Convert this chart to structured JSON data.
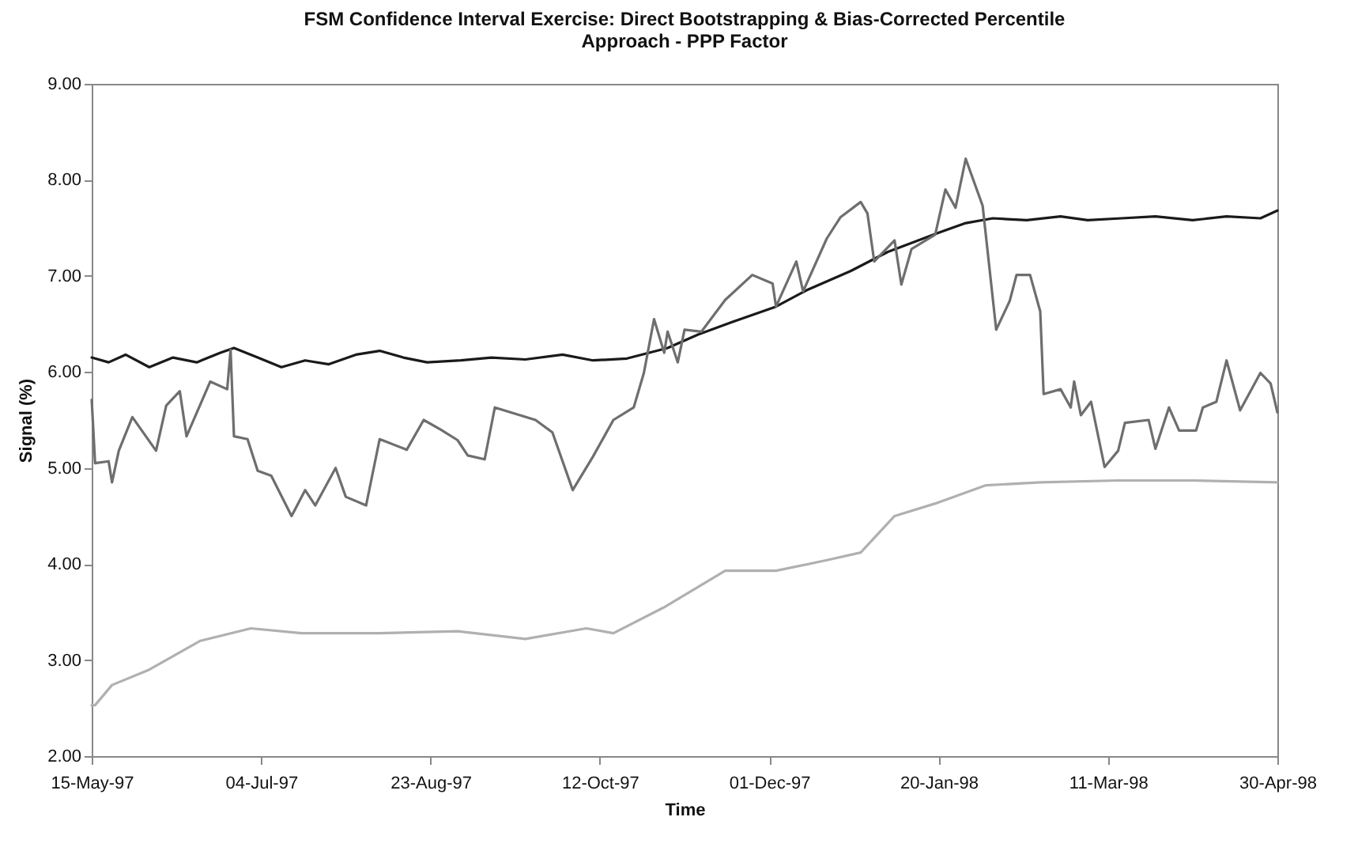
{
  "chart_data": {
    "type": "line",
    "title": "FSM Confidence Interval Exercise: Direct Bootstrapping & Bias-Corrected Percentile Approach - PPP Factor",
    "xlabel": "Time",
    "ylabel": "Signal (%)",
    "xlim": [
      "1997-05-15",
      "1998-04-30"
    ],
    "xticks": [
      {
        "value": "1997-05-15",
        "label": "15-May-97"
      },
      {
        "value": "1997-07-04",
        "label": "04-Jul-97"
      },
      {
        "value": "1997-08-23",
        "label": "23-Aug-97"
      },
      {
        "value": "1997-10-12",
        "label": "12-Oct-97"
      },
      {
        "value": "1997-12-01",
        "label": "01-Dec-97"
      },
      {
        "value": "1998-01-20",
        "label": "20-Jan-98"
      },
      {
        "value": "1998-03-11",
        "label": "11-Mar-98"
      },
      {
        "value": "1998-04-30",
        "label": "30-Apr-98"
      }
    ],
    "ylim": [
      2,
      9
    ],
    "yticks": [
      {
        "value": 2,
        "label": "2.00"
      },
      {
        "value": 3,
        "label": "3.00"
      },
      {
        "value": 4,
        "label": "4.00"
      },
      {
        "value": 5,
        "label": "5.00"
      },
      {
        "value": 6,
        "label": "6.00"
      },
      {
        "value": 7,
        "label": "7.00"
      },
      {
        "value": 8,
        "label": "8.00"
      },
      {
        "value": 9,
        "label": "9.00"
      }
    ],
    "grid": false,
    "legend": false,
    "line_style": "solid",
    "marker": "none",
    "series": [
      {
        "color": "#1a1a1a",
        "x": [
          "1997-05-15",
          "1997-05-20",
          "1997-05-25",
          "1997-06-01",
          "1997-06-08",
          "1997-06-15",
          "1997-06-22",
          "1997-06-26",
          "1997-07-03",
          "1997-07-10",
          "1997-07-17",
          "1997-07-24",
          "1997-08-01",
          "1997-08-08",
          "1997-08-15",
          "1997-08-22",
          "1997-09-01",
          "1997-09-10",
          "1997-09-20",
          "1997-10-01",
          "1997-10-10",
          "1997-10-20",
          "1997-11-01",
          "1997-11-10",
          "1997-11-20",
          "1997-12-03",
          "1997-12-12",
          "1997-12-25",
          "1998-01-05",
          "1998-01-20",
          "1998-01-28",
          "1998-02-05",
          "1998-02-15",
          "1998-02-25",
          "1998-03-05",
          "1998-03-15",
          "1998-03-25",
          "1998-04-05",
          "1998-04-15",
          "1998-04-25",
          "1998-04-30"
        ],
        "values": [
          6.15,
          6.1,
          6.18,
          6.05,
          6.15,
          6.1,
          6.2,
          6.25,
          6.15,
          6.05,
          6.12,
          6.08,
          6.18,
          6.22,
          6.15,
          6.1,
          6.12,
          6.15,
          6.13,
          6.18,
          6.12,
          6.14,
          6.25,
          6.39,
          6.52,
          6.68,
          6.85,
          7.05,
          7.25,
          7.45,
          7.55,
          7.6,
          7.58,
          7.62,
          7.58,
          7.6,
          7.62,
          7.58,
          7.62,
          7.6,
          7.68
        ]
      },
      {
        "color": "#6e6e6e",
        "x": [
          "1997-05-15",
          "1997-05-16",
          "1997-05-20",
          "1997-05-21",
          "1997-05-23",
          "1997-05-27",
          "1997-06-03",
          "1997-06-06",
          "1997-06-10",
          "1997-06-12",
          "1997-06-19",
          "1997-06-24",
          "1997-06-25",
          "1997-06-26",
          "1997-06-30",
          "1997-07-03",
          "1997-07-07",
          "1997-07-13",
          "1997-07-17",
          "1997-07-20",
          "1997-07-26",
          "1997-07-29",
          "1997-08-04",
          "1997-08-08",
          "1997-08-16",
          "1997-08-21",
          "1997-08-26",
          "1997-08-31",
          "1997-09-03",
          "1997-09-08",
          "1997-09-11",
          "1997-09-23",
          "1997-09-28",
          "1997-10-04",
          "1997-10-10",
          "1997-10-16",
          "1997-10-22",
          "1997-10-25",
          "1997-10-28",
          "1997-10-31",
          "1997-11-01",
          "1997-11-04",
          "1997-11-06",
          "1997-11-11",
          "1997-11-18",
          "1997-11-26",
          "1997-12-02",
          "1997-12-03",
          "1997-12-09",
          "1997-12-11",
          "1997-12-18",
          "1997-12-22",
          "1997-12-28",
          "1997-12-30",
          "1998-01-01",
          "1998-01-07",
          "1998-01-09",
          "1998-01-12",
          "1998-01-19",
          "1998-01-22",
          "1998-01-25",
          "1998-01-28",
          "1998-02-02",
          "1998-02-06",
          "1998-02-10",
          "1998-02-12",
          "1998-02-16",
          "1998-02-19",
          "1998-02-20",
          "1998-02-25",
          "1998-02-28",
          "1998-03-01",
          "1998-03-03",
          "1998-03-06",
          "1998-03-10",
          "1998-03-14",
          "1998-03-16",
          "1998-03-23",
          "1998-03-25",
          "1998-03-29",
          "1998-04-01",
          "1998-04-06",
          "1998-04-08",
          "1998-04-12",
          "1998-04-15",
          "1998-04-19",
          "1998-04-25",
          "1998-04-28",
          "1998-04-30"
        ],
        "values": [
          5.71,
          5.05,
          5.07,
          4.85,
          5.18,
          5.53,
          5.18,
          5.65,
          5.8,
          5.33,
          5.9,
          5.82,
          6.23,
          5.33,
          5.3,
          4.97,
          4.92,
          4.5,
          4.77,
          4.61,
          5.0,
          4.7,
          4.61,
          5.3,
          5.19,
          5.5,
          5.4,
          5.29,
          5.13,
          5.09,
          5.63,
          5.5,
          5.37,
          4.77,
          5.12,
          5.5,
          5.63,
          5.99,
          6.55,
          6.2,
          6.42,
          6.1,
          6.44,
          6.42,
          6.75,
          7.01,
          6.92,
          6.68,
          7.15,
          6.84,
          7.39,
          7.61,
          7.77,
          7.65,
          7.15,
          7.37,
          6.91,
          7.28,
          7.43,
          7.9,
          7.71,
          8.22,
          7.73,
          6.44,
          6.74,
          7.01,
          7.01,
          6.63,
          5.77,
          5.82,
          5.63,
          5.9,
          5.55,
          5.69,
          5.01,
          5.18,
          5.47,
          5.5,
          5.2,
          5.63,
          5.39,
          5.39,
          5.63,
          5.69,
          6.12,
          5.6,
          5.99,
          5.88,
          5.58
        ]
      },
      {
        "color": "#b0b0b0",
        "x": [
          "1997-05-15",
          "1997-05-16",
          "1997-05-21",
          "1997-06-01",
          "1997-06-16",
          "1997-07-01",
          "1997-07-16",
          "1997-08-08",
          "1997-08-31",
          "1997-09-20",
          "1997-10-08",
          "1997-10-16",
          "1997-10-31",
          "1997-11-18",
          "1997-12-03",
          "1997-12-18",
          "1997-12-28",
          "1998-01-07",
          "1998-01-19",
          "1998-02-03",
          "1998-02-19",
          "1998-03-14",
          "1998-04-05",
          "1998-04-30"
        ],
        "values": [
          2.53,
          2.53,
          2.74,
          2.9,
          3.2,
          3.33,
          3.28,
          3.28,
          3.3,
          3.22,
          3.33,
          3.28,
          3.55,
          3.93,
          3.93,
          4.04,
          4.12,
          4.5,
          4.63,
          4.82,
          4.85,
          4.87,
          4.87,
          4.85
        ]
      }
    ]
  }
}
